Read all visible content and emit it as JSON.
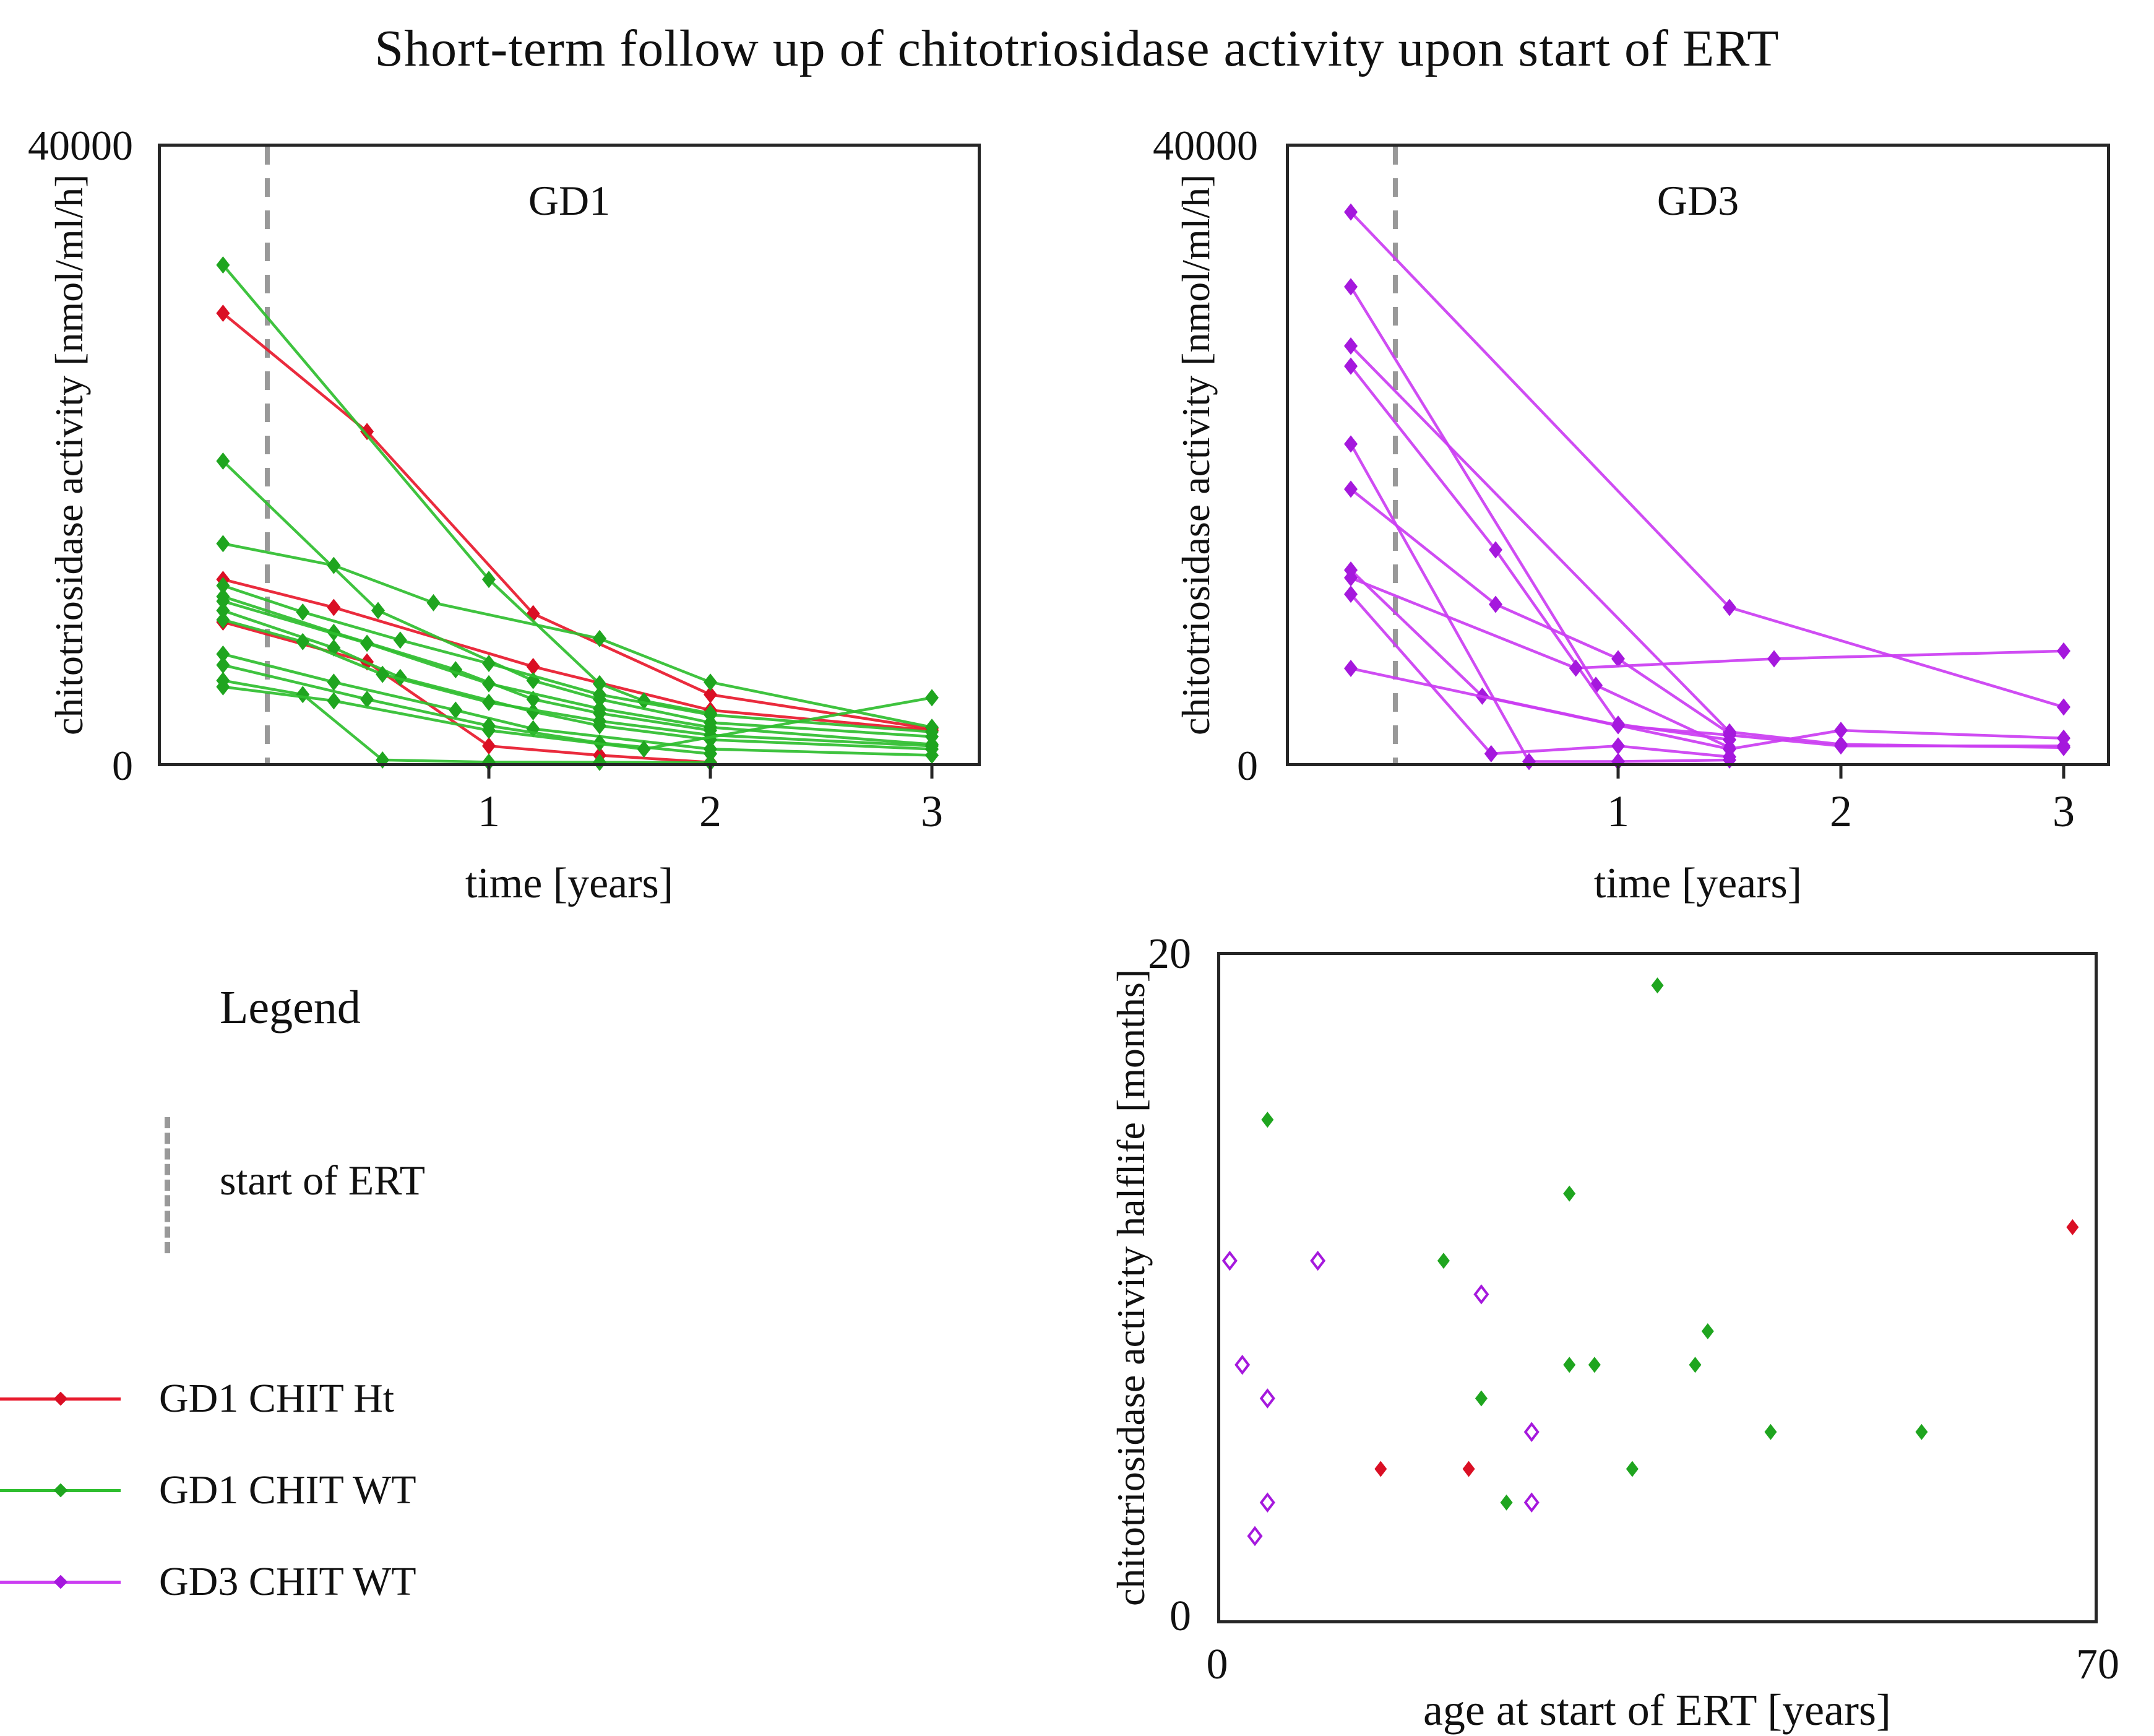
{
  "page_title": "Short-term follow up of chitotriosidase activity upon start of ERT",
  "colors": {
    "ht_line": "#e8192c",
    "ht_marker": "#da0f24",
    "wt_line": "#2fbe2f",
    "wt_marker": "#1fa51f",
    "gd3_line": "#cb3df2",
    "gd3_marker": "#a518dd",
    "ert_dash": "#999999",
    "axis": "#262626",
    "text": "#111111"
  },
  "legend": {
    "header": "Legend",
    "ert_label": "start of ERT",
    "items": [
      {
        "label": "GD1 CHIT Ht",
        "color": "ht"
      },
      {
        "label": "GD1 CHIT WT",
        "color": "wt"
      },
      {
        "label": "GD3 CHIT WT",
        "color": "gd3"
      }
    ]
  },
  "chart_data": [
    {
      "id": "gd1",
      "type": "line",
      "title": "GD1",
      "xlabel": "time [years]",
      "ylabel": "chitotriosidase activity [nmol/ml/h]",
      "xlim": [
        -0.5,
        3.2
      ],
      "ylim": [
        0,
        40000
      ],
      "ymax_label": "40000",
      "ymin_label": "0",
      "xticks": [
        {
          "value": 1,
          "label": "1"
        },
        {
          "value": 2,
          "label": "2"
        },
        {
          "value": 3,
          "label": "3"
        }
      ],
      "ert_line_x": 0,
      "grid": false,
      "series": [
        {
          "name": "GD1 CHIT Ht patient 1",
          "color": "ht",
          "points": [
            [
              -0.2,
              29100
            ],
            [
              0.45,
              21500
            ],
            [
              1.2,
              9800
            ],
            [
              2,
              4600
            ],
            [
              3,
              2400
            ]
          ]
        },
        {
          "name": "GD1 CHIT Ht patient 2",
          "color": "ht",
          "points": [
            [
              -0.2,
              12000
            ],
            [
              0.3,
              10200
            ],
            [
              1.2,
              6400
            ],
            [
              2,
              3600
            ],
            [
              3,
              2300
            ]
          ]
        },
        {
          "name": "GD1 CHIT Ht patient 3",
          "color": "ht",
          "points": [
            [
              -0.2,
              9260
            ],
            [
              0.45,
              6700
            ],
            [
              1,
              1300
            ],
            [
              1.5,
              700
            ],
            [
              2,
              250
            ]
          ]
        },
        {
          "name": "GD1 CHIT WT patient 1",
          "color": "wt",
          "points": [
            [
              -0.2,
              32200
            ],
            [
              1,
              12000
            ],
            [
              1.5,
              5300
            ],
            [
              1.7,
              4200
            ],
            [
              2,
              3400
            ]
          ]
        },
        {
          "name": "GD1 CHIT WT patient 2",
          "color": "wt",
          "points": [
            [
              -0.2,
              19600
            ],
            [
              0.5,
              10000
            ],
            [
              1.2,
              5500
            ],
            [
              1.5,
              4300
            ],
            [
              2,
              2800
            ],
            [
              3,
              1900
            ]
          ]
        },
        {
          "name": "GD1 CHIT WT patient 3",
          "color": "wt",
          "points": [
            [
              -0.2,
              14300
            ],
            [
              0.3,
              12900
            ],
            [
              0.75,
              10500
            ],
            [
              1.5,
              8200
            ],
            [
              2,
              5400
            ],
            [
              3,
              2500
            ]
          ]
        },
        {
          "name": "GD1 CHIT WT patient 4",
          "color": "wt",
          "points": [
            [
              -0.2,
              11600
            ],
            [
              0.16,
              9900
            ],
            [
              0.6,
              8100
            ],
            [
              1,
              6600
            ],
            [
              1.5,
              4600
            ],
            [
              2,
              3300
            ],
            [
              3,
              2200
            ]
          ]
        },
        {
          "name": "GD1 CHIT WT patient 5",
          "color": "wt",
          "points": [
            [
              -0.2,
              10900
            ],
            [
              0.3,
              8600
            ],
            [
              0.85,
              6200
            ],
            [
              1.2,
              4300
            ],
            [
              1.5,
              3400
            ],
            [
              2,
              2300
            ]
          ]
        },
        {
          "name": "GD1 CHIT WT patient 6",
          "color": "wt",
          "points": [
            [
              -0.2,
              10600
            ],
            [
              0.45,
              7900
            ],
            [
              1,
              5300
            ],
            [
              1.5,
              3700
            ],
            [
              2,
              2500
            ],
            [
              3,
              1400
            ]
          ]
        },
        {
          "name": "GD1 CHIT WT patient 7",
          "color": "wt",
          "points": [
            [
              -0.2,
              10000
            ],
            [
              0.3,
              7600
            ],
            [
              0.6,
              5700
            ],
            [
              1.2,
              3500
            ],
            [
              1.5,
              2600
            ],
            [
              2,
              1700
            ],
            [
              3,
              1100
            ]
          ]
        },
        {
          "name": "GD1 CHIT WT patient 8",
          "color": "wt",
          "points": [
            [
              -0.2,
              9400
            ],
            [
              0.16,
              8000
            ],
            [
              0.52,
              5900
            ],
            [
              1,
              4100
            ],
            [
              1.5,
              2900
            ],
            [
              2,
              2000
            ],
            [
              3,
              1300
            ]
          ]
        },
        {
          "name": "GD1 CHIT WT patient 9",
          "color": "wt",
          "points": [
            [
              -0.2,
              7200
            ],
            [
              0.3,
              5400
            ],
            [
              0.85,
              3600
            ],
            [
              1.2,
              2400
            ],
            [
              2,
              1100
            ],
            [
              3,
              700
            ]
          ]
        },
        {
          "name": "GD1 CHIT WT patient 10",
          "color": "wt",
          "points": [
            [
              -0.2,
              6500
            ],
            [
              0.45,
              4300
            ],
            [
              1,
              2600
            ],
            [
              1.5,
              1500
            ],
            [
              2,
              800
            ]
          ]
        },
        {
          "name": "GD1 CHIT WT patient 11",
          "color": "wt",
          "points": [
            [
              -0.2,
              5500
            ],
            [
              0.16,
              4600
            ],
            [
              0.52,
              400
            ],
            [
              1,
              260
            ],
            [
              1.5,
              250
            ],
            [
              2,
              230
            ]
          ]
        },
        {
          "name": "GD1 CHIT WT patient 12",
          "color": "wt",
          "points": [
            [
              -0.2,
              5100
            ],
            [
              0.3,
              4200
            ],
            [
              1,
              2300
            ],
            [
              1.7,
              1100
            ],
            [
              3,
              4400
            ]
          ]
        }
      ]
    },
    {
      "id": "gd3",
      "type": "line",
      "title": "GD3",
      "xlabel": "time [years]",
      "ylabel": "chitotriosidase activity [nmol/ml/h]",
      "xlim": [
        -0.5,
        3.2
      ],
      "ylim": [
        0,
        40000
      ],
      "ymax_label": "40000",
      "ymin_label": "0",
      "xticks": [
        {
          "value": 1,
          "label": "1"
        },
        {
          "value": 2,
          "label": "2"
        },
        {
          "value": 3,
          "label": "3"
        }
      ],
      "ert_line_x": 0,
      "grid": false,
      "series": [
        {
          "name": "GD3 CHIT WT patient 1",
          "color": "gd3",
          "points": [
            [
              -0.2,
              35600
            ],
            [
              1.5,
              10200
            ],
            [
              3,
              3800
            ]
          ]
        },
        {
          "name": "GD3 CHIT WT patient 2",
          "color": "gd3",
          "points": [
            [
              -0.2,
              30800
            ],
            [
              0.9,
              5200
            ],
            [
              1.5,
              1200
            ]
          ]
        },
        {
          "name": "GD3 CHIT WT patient 3",
          "color": "gd3",
          "points": [
            [
              -0.2,
              27000
            ],
            [
              1.5,
              2200
            ],
            [
              2,
              1400
            ],
            [
              3,
              1200
            ]
          ]
        },
        {
          "name": "GD3 CHIT WT patient 4",
          "color": "gd3",
          "points": [
            [
              -0.2,
              25700
            ],
            [
              0.45,
              13900
            ],
            [
              1,
              2700
            ],
            [
              1.5,
              1700
            ]
          ]
        },
        {
          "name": "GD3 CHIT WT patient 5",
          "color": "gd3",
          "points": [
            [
              -0.2,
              20700
            ],
            [
              0.6,
              300
            ],
            [
              1,
              300
            ],
            [
              1.5,
              400
            ]
          ]
        },
        {
          "name": "GD3 CHIT WT patient 6",
          "color": "gd3",
          "points": [
            [
              -0.2,
              17800
            ],
            [
              0.45,
              10400
            ],
            [
              1,
              6900
            ],
            [
              1.5,
              2100
            ]
          ]
        },
        {
          "name": "GD3 CHIT WT patient 7",
          "color": "gd3",
          "points": [
            [
              -0.2,
              12600
            ],
            [
              0.39,
              4500
            ],
            [
              1.5,
              1100
            ],
            [
              2,
              2300
            ],
            [
              3,
              1800
            ]
          ]
        },
        {
          "name": "GD3 CHIT WT patient 8",
          "color": "gd3",
          "points": [
            [
              -0.2,
              12100
            ],
            [
              0.81,
              6300
            ],
            [
              1.7,
              6900
            ],
            [
              3,
              7400
            ]
          ]
        },
        {
          "name": "GD3 CHIT WT patient 9",
          "color": "gd3",
          "points": [
            [
              -0.2,
              11050
            ],
            [
              0.43,
              800
            ],
            [
              1,
              1300
            ],
            [
              1.5,
              600
            ]
          ]
        },
        {
          "name": "GD3 CHIT WT patient 10",
          "color": "gd3",
          "points": [
            [
              -0.2,
              6280
            ],
            [
              1,
              2600
            ],
            [
              1.5,
              2000
            ],
            [
              2,
              1300
            ],
            [
              3,
              1300
            ]
          ]
        }
      ]
    },
    {
      "id": "halflife",
      "type": "scatter",
      "title": "",
      "xlabel": "age at start of ERT [years]",
      "ylabel": "chitotriosidase activity halflife [months]",
      "xlim": [
        0,
        70
      ],
      "ylim": [
        0,
        20
      ],
      "xmin_label": "0",
      "xmax_label": "70",
      "ymin_label": "0",
      "ymax_label": "20",
      "grid": false,
      "groups": [
        {
          "name": "GD1 CHIT Ht",
          "color": "ht",
          "marker": "filled",
          "points": [
            [
              68,
              11.8
            ],
            [
              13,
              4.6
            ],
            [
              20,
              4.6
            ]
          ]
        },
        {
          "name": "GD1 CHIT WT",
          "color": "wt",
          "marker": "filled",
          "points": [
            [
              35,
              19
            ],
            [
              4,
              15
            ],
            [
              28,
              12.8
            ],
            [
              18,
              10.8
            ],
            [
              39,
              8.7
            ],
            [
              28,
              7.7
            ],
            [
              30,
              7.7
            ],
            [
              38,
              7.7
            ],
            [
              21,
              6.7
            ],
            [
              44,
              5.7
            ],
            [
              56,
              5.7
            ],
            [
              33,
              4.6
            ],
            [
              23,
              3.6
            ]
          ]
        },
        {
          "name": "GD3 CHIT WT",
          "color": "gd3",
          "marker": "open",
          "points": [
            [
              1,
              10.8
            ],
            [
              8,
              10.8
            ],
            [
              21,
              9.8
            ],
            [
              2,
              7.7
            ],
            [
              4,
              6.7
            ],
            [
              25,
              5.7
            ],
            [
              4,
              3.6
            ],
            [
              25,
              3.6
            ],
            [
              3,
              2.6
            ]
          ]
        }
      ]
    }
  ]
}
